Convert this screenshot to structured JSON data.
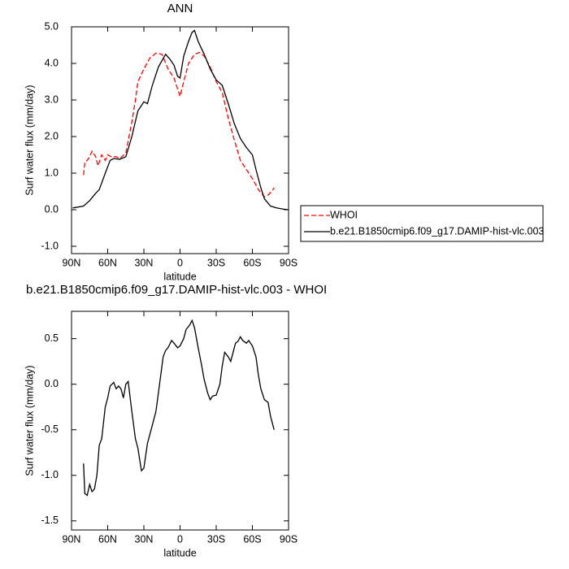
{
  "chart_data": [
    {
      "type": "line",
      "title": "ANN",
      "xlabel": "latitude",
      "ylabel": "Surf water flux (mm/day)",
      "xlim": [
        90,
        -90
      ],
      "xticks": [
        {
          "value": 90,
          "label": "90N"
        },
        {
          "value": 60,
          "label": "60N"
        },
        {
          "value": 30,
          "label": "30N"
        },
        0,
        {
          "value": -30,
          "label": "30S"
        },
        {
          "value": -60,
          "label": "60S"
        },
        {
          "value": -90,
          "label": "90S"
        }
      ],
      "ylim": [
        -1.2,
        5.0
      ],
      "yticks": [
        {
          "value": 5,
          "label": "5.0"
        },
        {
          "value": 4,
          "label": "4.0"
        },
        {
          "value": 3,
          "label": "3.0"
        },
        {
          "value": 2,
          "label": "2.0"
        },
        {
          "value": 1,
          "label": "1.0"
        },
        {
          "value": 0,
          "label": "0.0"
        },
        {
          "value": -1,
          "label": "-1.0"
        }
      ],
      "legend": "right",
      "series": [
        {
          "name": "WHOI",
          "color": "#ff0000",
          "dashed": true,
          "x": [
            80,
            79,
            77,
            75,
            73,
            70,
            68,
            65,
            62,
            60,
            57,
            53,
            50,
            45,
            40,
            37,
            35,
            30,
            25,
            20,
            15,
            10,
            5,
            2,
            0,
            -3,
            -7,
            -12,
            -16,
            -20,
            -25,
            -30,
            -35,
            -40,
            -45,
            -50,
            -55,
            -60,
            -65,
            -70,
            -73,
            -76,
            -78
          ],
          "values": [
            0.95,
            1.3,
            1.35,
            1.45,
            1.6,
            1.45,
            1.2,
            1.5,
            1.35,
            1.5,
            1.45,
            1.45,
            1.4,
            1.55,
            2.4,
            3.0,
            3.5,
            3.85,
            4.15,
            4.28,
            4.25,
            3.85,
            3.6,
            3.3,
            3.1,
            3.5,
            4.0,
            4.25,
            4.3,
            4.2,
            3.9,
            3.5,
            3.2,
            2.5,
            1.9,
            1.35,
            1.1,
            0.85,
            0.55,
            0.35,
            0.4,
            0.5,
            0.6
          ]
        },
        {
          "name": "b.e21.B1850cmip6.f09_g17.DAMIP-hist-vlc.003",
          "color": "#000000",
          "dashed": false,
          "x": [
            89,
            80,
            75,
            70,
            67,
            62,
            58,
            55,
            50,
            45,
            40,
            35,
            30,
            27,
            23,
            18,
            12,
            8,
            5,
            2,
            0,
            -3,
            -7,
            -10,
            -12,
            -15,
            -20,
            -25,
            -30,
            -35,
            -40,
            -45,
            -50,
            -55,
            -60,
            -63,
            -67,
            -70,
            -75,
            -80,
            -85,
            -90
          ],
          "values": [
            0.05,
            0.1,
            0.25,
            0.45,
            0.55,
            1.0,
            1.35,
            1.4,
            1.38,
            1.45,
            2.0,
            2.7,
            2.95,
            2.9,
            3.4,
            3.9,
            4.25,
            4.1,
            3.95,
            3.65,
            3.6,
            4.2,
            4.6,
            4.85,
            4.9,
            4.6,
            4.25,
            3.85,
            3.55,
            3.4,
            2.9,
            2.35,
            1.95,
            1.7,
            1.5,
            1.1,
            0.6,
            0.3,
            0.1,
            0.05,
            0.02,
            0.0
          ]
        }
      ]
    },
    {
      "type": "line",
      "title": "b.e21.B1850cmip6.f09_g17.DAMIP-hist-vlc.003 - WHOI",
      "xlabel": "latitude",
      "ylabel": "Surf water flux (mm/day)",
      "xlim": [
        90,
        -90
      ],
      "xticks": [
        {
          "value": 90,
          "label": "90N"
        },
        {
          "value": 60,
          "label": "60N"
        },
        {
          "value": 30,
          "label": "30N"
        },
        0,
        {
          "value": -30,
          "label": "30S"
        },
        {
          "value": -60,
          "label": "60S"
        },
        {
          "value": -90,
          "label": "90S"
        }
      ],
      "ylim": [
        -1.6,
        0.8
      ],
      "yticks": [
        0.5,
        {
          "value": 0,
          "label": "0.0"
        },
        -0.5,
        {
          "value": -1,
          "label": "-1.0"
        },
        -1.5
      ],
      "series": [
        {
          "color": "#000000",
          "dashed": false,
          "x": [
            80,
            79,
            77,
            75,
            73,
            71,
            69,
            67,
            65,
            62,
            60,
            58,
            55,
            53,
            51,
            49,
            47,
            45,
            43,
            40,
            37,
            35,
            32,
            30,
            27,
            23,
            20,
            17,
            14,
            12,
            10,
            7,
            5,
            2,
            0,
            -3,
            -5,
            -8,
            -10,
            -12,
            -15,
            -18,
            -20,
            -23,
            -25,
            -27,
            -30,
            -33,
            -35,
            -37,
            -40,
            -42,
            -44,
            -46,
            -48,
            -50,
            -52,
            -55,
            -57,
            -60,
            -63,
            -65,
            -67,
            -70,
            -73,
            -75,
            -78
          ],
          "values": [
            -0.87,
            -1.2,
            -1.22,
            -1.1,
            -1.18,
            -1.15,
            -1.0,
            -0.67,
            -0.6,
            -0.25,
            -0.15,
            -0.02,
            0.02,
            -0.05,
            -0.02,
            -0.05,
            -0.15,
            0.0,
            0.03,
            -0.3,
            -0.6,
            -0.7,
            -0.95,
            -0.92,
            -0.65,
            -0.45,
            -0.3,
            0.0,
            0.3,
            0.37,
            0.4,
            0.48,
            0.45,
            0.4,
            0.42,
            0.5,
            0.6,
            0.65,
            0.7,
            0.62,
            0.4,
            0.2,
            0.05,
            -0.1,
            -0.17,
            -0.13,
            -0.12,
            0.0,
            0.2,
            0.35,
            0.3,
            0.25,
            0.35,
            0.45,
            0.47,
            0.52,
            0.48,
            0.45,
            0.48,
            0.42,
            0.3,
            0.1,
            -0.05,
            -0.17,
            -0.2,
            -0.35,
            -0.5
          ]
        }
      ]
    }
  ]
}
